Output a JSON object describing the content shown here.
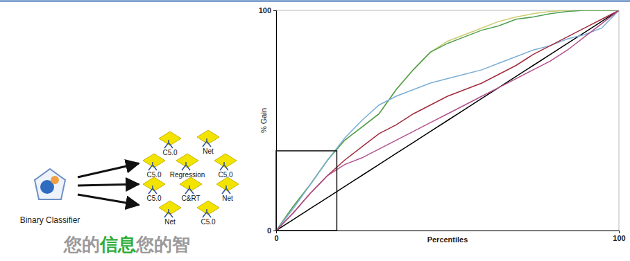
{
  "chart_data": {
    "type": "line",
    "x": [
      0,
      5,
      10,
      15,
      20,
      25,
      30,
      35,
      40,
      45,
      50,
      55,
      60,
      65,
      70,
      75,
      80,
      85,
      90,
      95,
      100
    ],
    "xlim": [
      0,
      100
    ],
    "ylim": [
      0,
      100
    ],
    "xticks": [
      0,
      100
    ],
    "yticks": [
      0,
      100
    ],
    "x_label": "Percentiles",
    "y_label": "% Gain",
    "series": [
      {
        "color": "#000000",
        "values": [
          0,
          5,
          10,
          15,
          20,
          25,
          30,
          35,
          40,
          45,
          50,
          55,
          60,
          65,
          70,
          75,
          80,
          85,
          90,
          95,
          100
        ]
      },
      {
        "color": "#cccc70",
        "values": [
          0,
          11,
          21,
          32,
          41,
          47,
          53,
          64,
          73,
          81,
          86,
          89,
          92,
          95,
          97,
          98.5,
          99.5,
          100,
          100,
          100,
          100
        ]
      },
      {
        "color": "#4f9f4f",
        "values": [
          0,
          11,
          21,
          32,
          41,
          47,
          53,
          64,
          73,
          81,
          85,
          88,
          91,
          93,
          96,
          97,
          98.5,
          99.5,
          100,
          100,
          100
        ]
      },
      {
        "color": "#7aaed6",
        "values": [
          0,
          10,
          21,
          32,
          42,
          50,
          57,
          61,
          64,
          67,
          69,
          71,
          73,
          76,
          79,
          82,
          84,
          87,
          89,
          92,
          100
        ]
      },
      {
        "color": "#a02c3c",
        "values": [
          0,
          8,
          17,
          25,
          32,
          38,
          44,
          48,
          53,
          57,
          61,
          64,
          67,
          71,
          75,
          80,
          84,
          88,
          92,
          96,
          100
        ]
      },
      {
        "color": "#b0508c",
        "values": [
          0,
          8,
          17,
          25,
          30,
          33,
          37,
          41,
          45,
          49,
          53,
          57,
          61,
          65,
          69,
          73,
          77,
          82,
          88,
          94,
          100
        ]
      }
    ],
    "highlight": {
      "x": [
        0,
        17.7
      ],
      "y": [
        0,
        36.2
      ]
    }
  },
  "diagram": {
    "source": {
      "label": "Binary Classifier"
    },
    "nodes": [
      {
        "label": "C5.0"
      },
      {
        "label": "Net"
      },
      {
        "label": "C5.0"
      },
      {
        "label": "Regression"
      },
      {
        "label": "C5.0"
      },
      {
        "label": "C5.0"
      },
      {
        "label": "C&RT"
      },
      {
        "label": "Net"
      },
      {
        "label": "Net"
      },
      {
        "label": "C5.0"
      }
    ],
    "watermark": [
      "您的",
      "信息",
      "您的智"
    ]
  }
}
